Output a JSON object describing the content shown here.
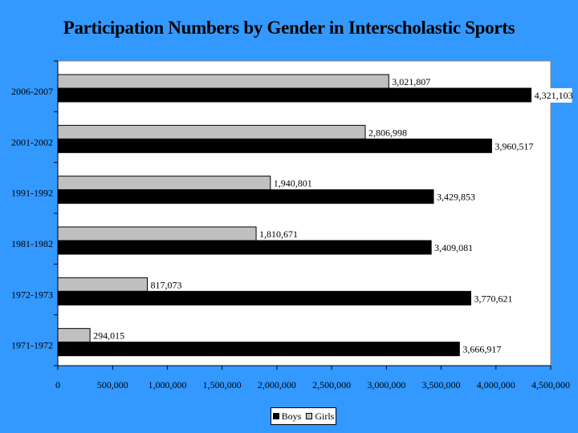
{
  "chart_data": {
    "type": "bar",
    "orientation": "horizontal",
    "title": "Participation Numbers by Gender in Interscholastic Sports",
    "categories": [
      "2006-2007",
      "2001-2002",
      "1991-1992",
      "1981-1982",
      "1972-1973",
      "1971-1972"
    ],
    "series": [
      {
        "name": "Girls",
        "color": "#c0c0c0",
        "values": [
          3021807,
          2806998,
          1940801,
          1810671,
          817073,
          294015
        ]
      },
      {
        "name": "Boys",
        "color": "#000000",
        "values": [
          4321103,
          3960517,
          3429853,
          3409081,
          3770621,
          3666917
        ]
      }
    ],
    "value_labels": {
      "Girls": [
        "3,021,807",
        "2,806,998",
        "1,940,801",
        "1,810,671",
        "817,073",
        "294,015"
      ],
      "Boys": [
        "4,321,103",
        "3,960,517",
        "3,429,853",
        "3,409,081",
        "3,770,621",
        "3,666,917"
      ]
    },
    "x_ticks": [
      "0",
      "500,000",
      "1,000,000",
      "1,500,000",
      "2,000,000",
      "2,500,000",
      "3,000,000",
      "3,500,000",
      "4,000,000",
      "4,500,000"
    ],
    "xlim": [
      0,
      4500000
    ],
    "grid": false,
    "legend": {
      "placement": "bottom",
      "entries": [
        "Boys",
        "Girls"
      ]
    },
    "plot_background": "#ffffff",
    "page_background": "#3399ff"
  }
}
